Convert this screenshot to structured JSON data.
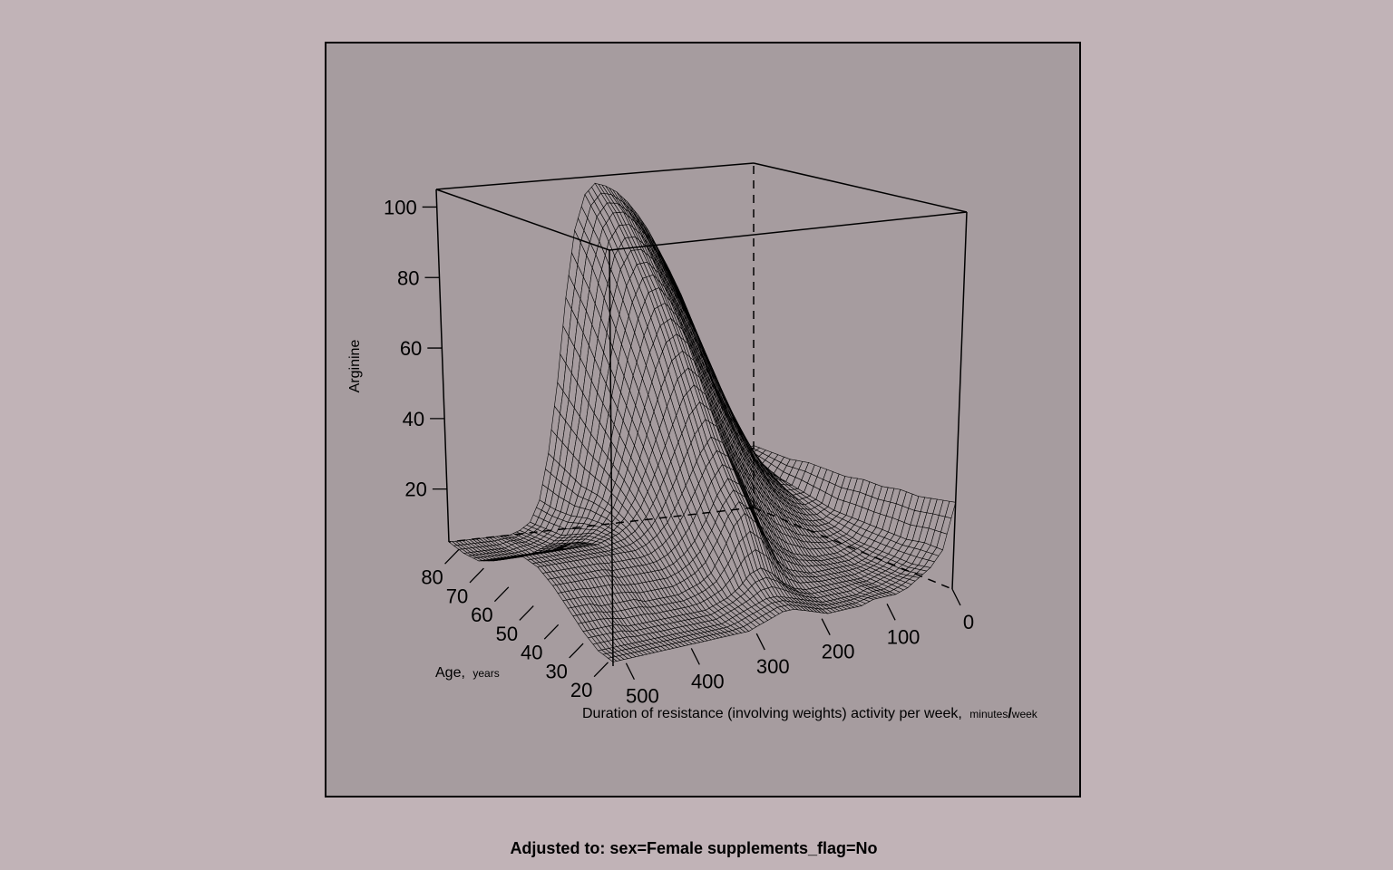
{
  "chart_data": {
    "type": "surface",
    "z_label": "Arginine",
    "x_label_main": "Duration of resistance (involving weights) activity per week,",
    "x_label_unit_1": "minutes",
    "x_label_unit_sep": "/",
    "x_label_unit_2": "week",
    "y_label_main": "Age,",
    "y_label_unit": "years",
    "z_ticks": [
      20,
      40,
      60,
      80,
      100
    ],
    "z_tick_labels": [
      "20",
      "40",
      "60",
      "80",
      "100"
    ],
    "x_ticks": [
      0,
      100,
      200,
      300,
      400,
      500
    ],
    "x_tick_labels": [
      "0",
      "100",
      "200",
      "300",
      "400",
      "500"
    ],
    "y_ticks": [
      20,
      30,
      40,
      50,
      60,
      70,
      80
    ],
    "y_tick_labels": [
      "20",
      "30",
      "40",
      "50",
      "60",
      "70",
      "80"
    ],
    "xlim": [
      0,
      520
    ],
    "ylim": [
      18,
      84
    ],
    "zlim": [
      5,
      105
    ],
    "grid_x": [
      0,
      17,
      35,
      52,
      69,
      87,
      104,
      121,
      139,
      156,
      173,
      191,
      208,
      225,
      243,
      260,
      277,
      295,
      312,
      329,
      347,
      364,
      381,
      399,
      416,
      433,
      451,
      468,
      485,
      503,
      520
    ],
    "grid_y": [
      18,
      24,
      30,
      36,
      42,
      48,
      54,
      60,
      66,
      72,
      78,
      84
    ],
    "z_values": [
      [
        28,
        16,
        12,
        10,
        8,
        7,
        7,
        7,
        6,
        6,
        6,
        6,
        7,
        8,
        9,
        9,
        8,
        7,
        6,
        6,
        6,
        6,
        6,
        6,
        6,
        6,
        6,
        6,
        6,
        6,
        6
      ],
      [
        27,
        16,
        11,
        9,
        8,
        7,
        7,
        6,
        6,
        6,
        6,
        7,
        8,
        9,
        10,
        10,
        9,
        8,
        7,
        6,
        6,
        6,
        6,
        6,
        6,
        6,
        6,
        6,
        6,
        6,
        6
      ],
      [
        26,
        15,
        11,
        9,
        8,
        7,
        7,
        7,
        7,
        7,
        7,
        8,
        10,
        13,
        15,
        14,
        11,
        9,
        8,
        7,
        7,
        7,
        7,
        7,
        7,
        7,
        7,
        8,
        8,
        8,
        8
      ],
      [
        26,
        15,
        11,
        9,
        8,
        8,
        8,
        8,
        8,
        9,
        10,
        13,
        18,
        24,
        27,
        24,
        18,
        13,
        11,
        10,
        9,
        9,
        9,
        9,
        10,
        10,
        10,
        10,
        11,
        11,
        11
      ],
      [
        25,
        15,
        11,
        10,
        9,
        9,
        9,
        10,
        11,
        13,
        16,
        20,
        26,
        32,
        34,
        30,
        24,
        19,
        16,
        14,
        13,
        13,
        13,
        13,
        13,
        14,
        14,
        14,
        14,
        14,
        14
      ],
      [
        25,
        15,
        12,
        11,
        11,
        12,
        13,
        15,
        17,
        20,
        24,
        29,
        35,
        41,
        43,
        39,
        33,
        27,
        22,
        19,
        17,
        16,
        16,
        16,
        16,
        16,
        16,
        16,
        16,
        16,
        16
      ],
      [
        24,
        15,
        13,
        13,
        14,
        16,
        18,
        21,
        25,
        29,
        34,
        40,
        46,
        52,
        55,
        52,
        45,
        37,
        30,
        24,
        20,
        18,
        17,
        16,
        16,
        16,
        16,
        16,
        16,
        16,
        16
      ],
      [
        24,
        16,
        15,
        16,
        18,
        21,
        25,
        29,
        34,
        40,
        46,
        52,
        58,
        64,
        67,
        65,
        58,
        48,
        38,
        29,
        22,
        18,
        16,
        14,
        14,
        13,
        13,
        13,
        13,
        13,
        13
      ],
      [
        24,
        17,
        17,
        20,
        23,
        27,
        32,
        38,
        44,
        50,
        57,
        63,
        69,
        74,
        78,
        77,
        70,
        59,
        46,
        33,
        23,
        17,
        13,
        11,
        10,
        9,
        9,
        9,
        9,
        9,
        9
      ],
      [
        23,
        18,
        20,
        24,
        29,
        35,
        41,
        48,
        55,
        62,
        68,
        74,
        79,
        84,
        87,
        87,
        82,
        70,
        54,
        37,
        23,
        15,
        10,
        8,
        7,
        6,
        6,
        6,
        6,
        6,
        6
      ],
      [
        23,
        20,
        24,
        29,
        36,
        43,
        51,
        58,
        65,
        72,
        78,
        84,
        89,
        93,
        96,
        96,
        92,
        81,
        63,
        42,
        25,
        14,
        9,
        7,
        6,
        6,
        5,
        5,
        5,
        5,
        5
      ],
      [
        23,
        22,
        28,
        36,
        44,
        53,
        61,
        69,
        76,
        82,
        88,
        93,
        97,
        100,
        102,
        103,
        100,
        90,
        71,
        47,
        27,
        14,
        8,
        6,
        5,
        5,
        5,
        5,
        5,
        5,
        5
      ]
    ]
  },
  "footnote": "Adjusted to: sex=Female supplements_flag=No"
}
